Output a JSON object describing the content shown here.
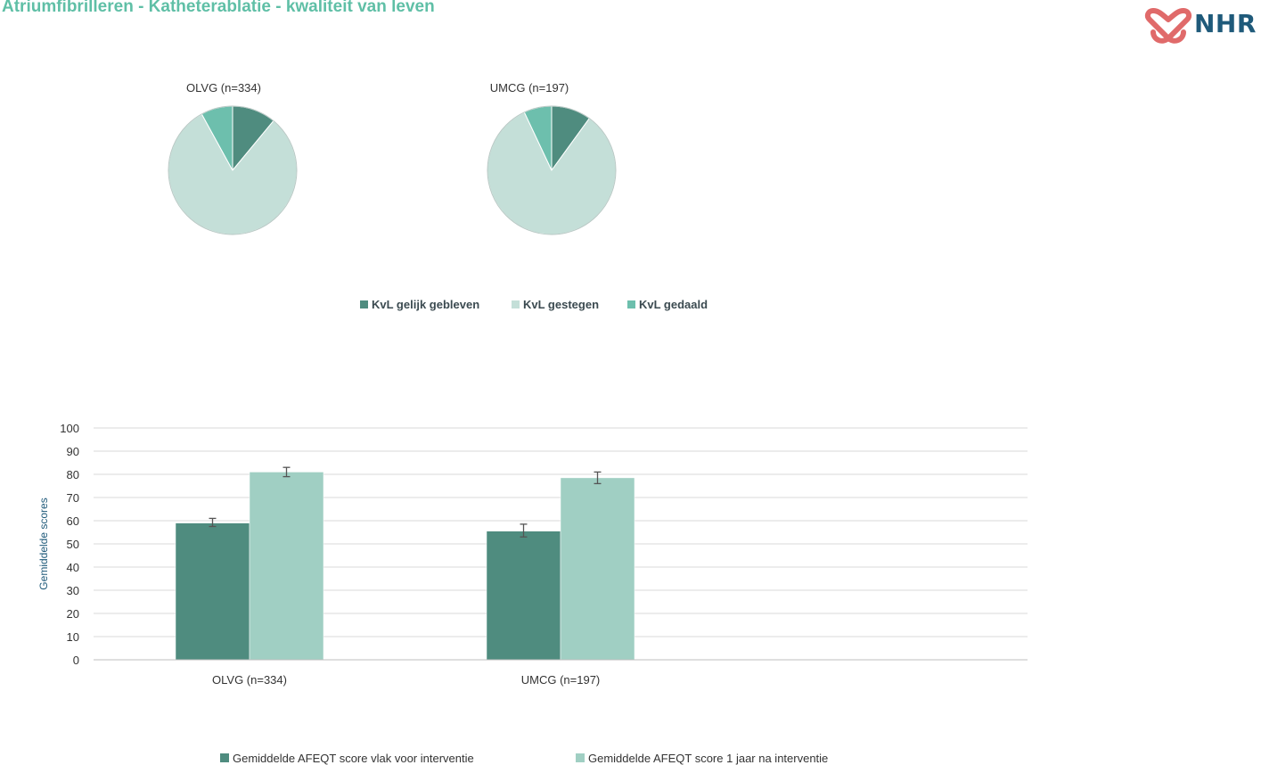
{
  "header": {
    "title": "Atriumfibrilleren - Katheterablatie - kwaliteit van leven",
    "logo_text": "NHR"
  },
  "colors": {
    "title": "#5fbfa6",
    "dark_green": "#4f8c7f",
    "light_green": "#c4dfd8",
    "mid_green": "#6dbfad",
    "bar_light": "#a0cfc3",
    "logo_red": "#e06a6a",
    "logo_blue": "#1f5a7a"
  },
  "chart_data": [
    {
      "type": "pie",
      "title": "OLVG (n=334)",
      "categories": [
        "KvL gelijk gebleven",
        "KvL gestegen",
        "KvL gedaald"
      ],
      "values": [
        11,
        81,
        8
      ],
      "legend_position": "bottom"
    },
    {
      "type": "pie",
      "title": "UMCG (n=197)",
      "categories": [
        "KvL gelijk gebleven",
        "KvL gestegen",
        "KvL gedaald"
      ],
      "values": [
        10,
        83,
        7
      ],
      "legend_position": "bottom"
    },
    {
      "type": "bar",
      "title": "",
      "categories": [
        "OLVG (n=334)",
        "UMCG (n=197)"
      ],
      "series": [
        {
          "name": "Gemiddelde AFEQT score vlak voor interventie",
          "values": [
            59,
            55.5
          ],
          "error_low": [
            57.5,
            53
          ],
          "error_high": [
            61,
            58.5
          ]
        },
        {
          "name": "Gemiddelde AFEQT score 1 jaar na interventie",
          "values": [
            81,
            78.5
          ],
          "error_low": [
            79,
            76
          ],
          "error_high": [
            83,
            81
          ]
        }
      ],
      "xlabel": "",
      "ylabel": "Gemiddelde scores",
      "ylim": [
        0,
        100
      ],
      "yticks": [
        0,
        10,
        20,
        30,
        40,
        50,
        60,
        70,
        80,
        90,
        100
      ],
      "grid": true,
      "legend_position": "bottom"
    }
  ]
}
